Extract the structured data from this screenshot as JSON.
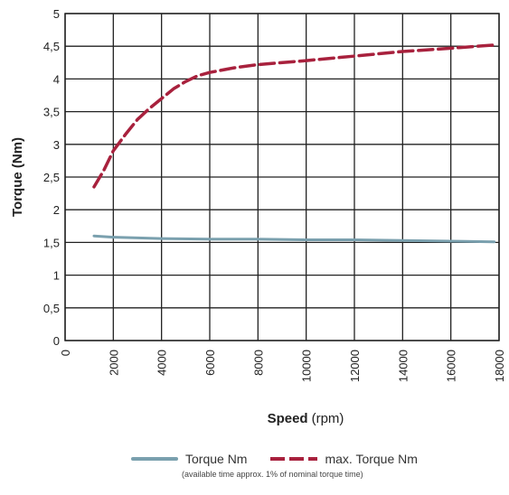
{
  "chart_data": {
    "type": "line",
    "xlabel": "Speed",
    "xlabel_unit": "(rpm)",
    "ylabel": "Torque (Nm)",
    "xlim": [
      0,
      18000
    ],
    "ylim": [
      0,
      5
    ],
    "x_ticks": [
      "0",
      "2000",
      "4000",
      "6000",
      "8000",
      "10000",
      "12000",
      "14000",
      "16000",
      "18000"
    ],
    "y_ticks": [
      "0",
      "0,5",
      "1",
      "1,5",
      "2",
      "2,5",
      "3",
      "3,5",
      "4",
      "4,5",
      "5"
    ],
    "grid": true,
    "legend_position": "bottom",
    "series": [
      {
        "name": "Torque Nm",
        "color": "#7aa0ae",
        "style": "solid",
        "x": [
          1200,
          2000,
          4000,
          6000,
          8000,
          10000,
          12000,
          14000,
          16000,
          17800
        ],
        "y": [
          1.6,
          1.58,
          1.56,
          1.55,
          1.55,
          1.54,
          1.54,
          1.53,
          1.52,
          1.51
        ]
      },
      {
        "name": "max. Torque Nm",
        "color": "#a8213d",
        "style": "dashed",
        "x": [
          1200,
          1600,
          2000,
          2500,
          3000,
          3500,
          4000,
          4500,
          5000,
          5500,
          6000,
          7000,
          8000,
          10000,
          12000,
          14000,
          16000,
          17800
        ],
        "y": [
          2.35,
          2.6,
          2.9,
          3.15,
          3.38,
          3.55,
          3.7,
          3.85,
          3.96,
          4.05,
          4.1,
          4.17,
          4.22,
          4.28,
          4.35,
          4.42,
          4.47,
          4.52
        ]
      }
    ],
    "legend_note": "(available time approx. 1% of nominal torque time)"
  }
}
